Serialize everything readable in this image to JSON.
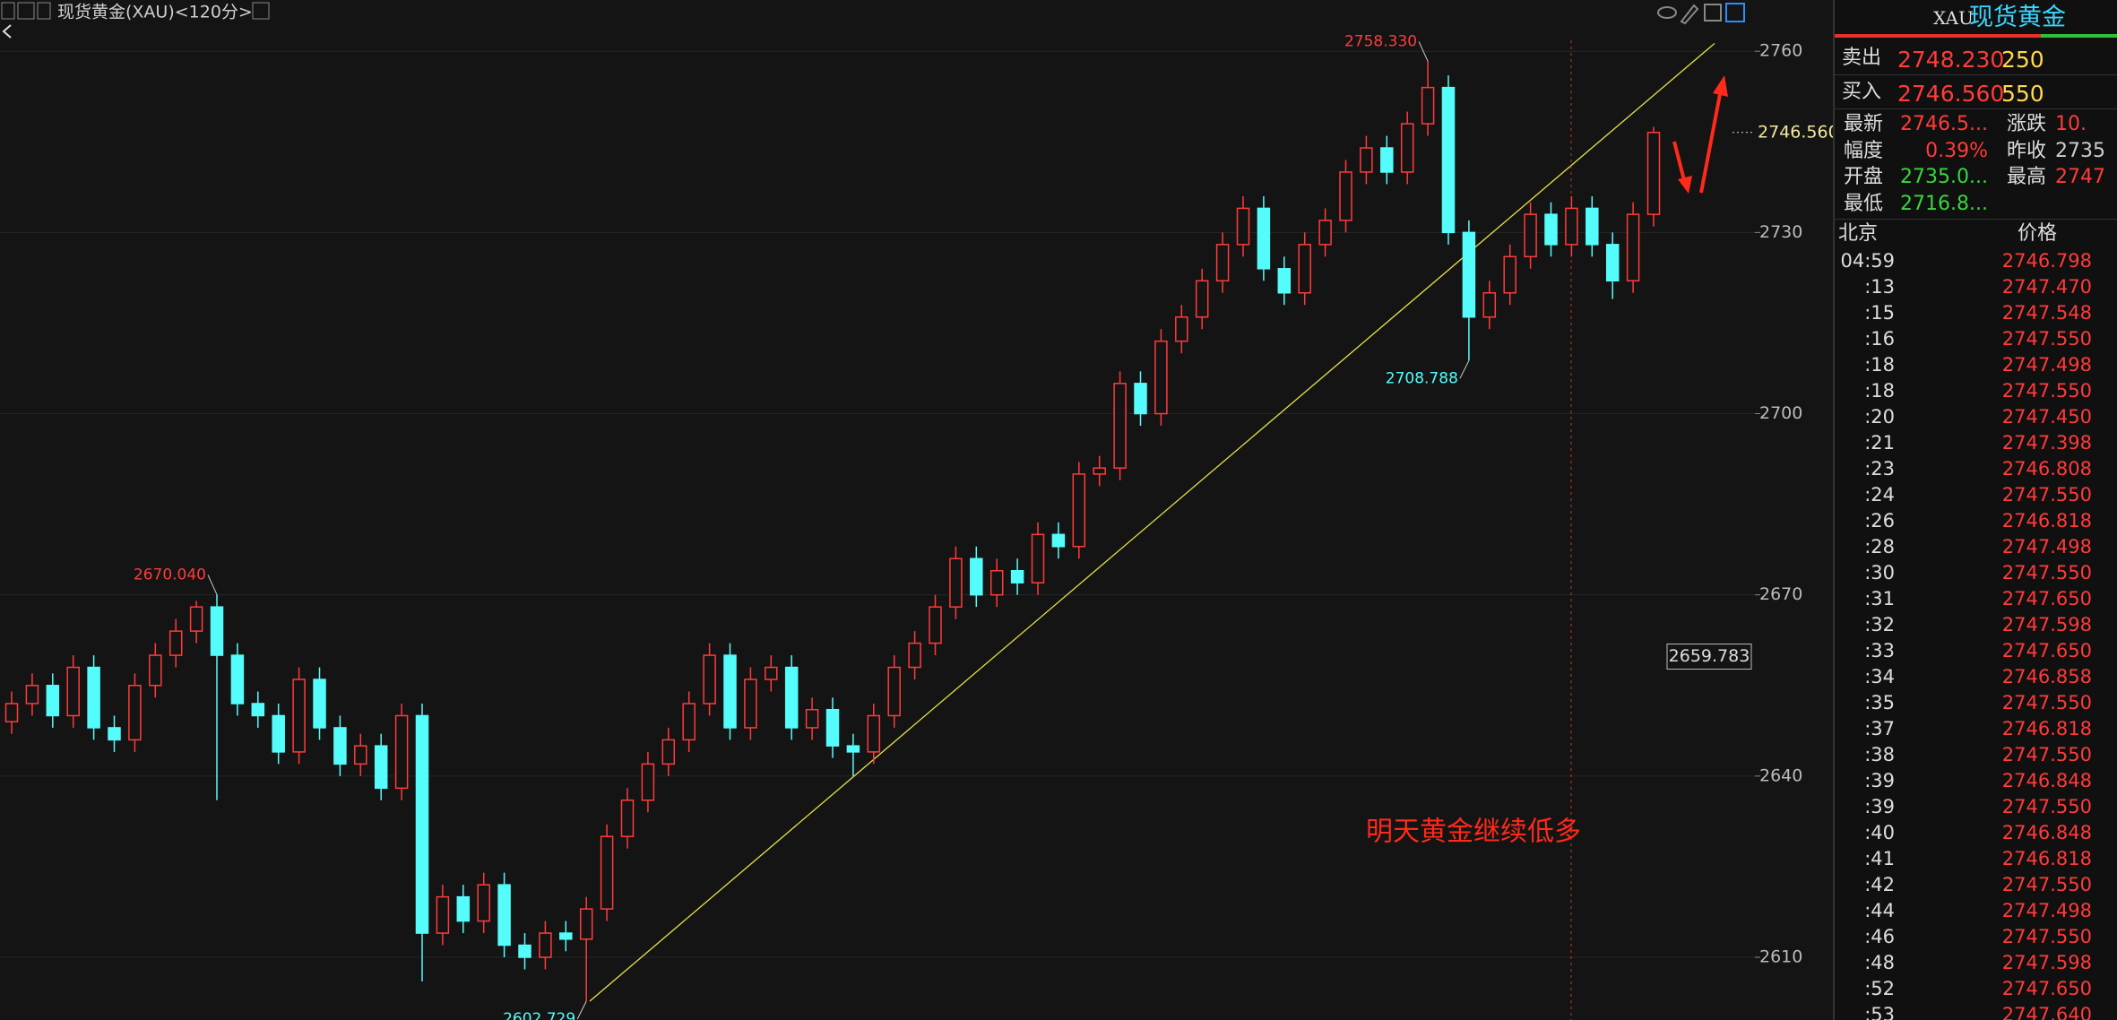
{
  "chart_data": {
    "type": "candlestick",
    "title": "现货黄金(XAU)<120分>",
    "categories": [
      null,
      null,
      null,
      null,
      null,
      null,
      null,
      null,
      null,
      null,
      null,
      null,
      null,
      null,
      null,
      null,
      null,
      null,
      null,
      null,
      null,
      null,
      null,
      null,
      null,
      null,
      null,
      null,
      null,
      null,
      null,
      null,
      null,
      null,
      null,
      null,
      null,
      null,
      null,
      null,
      null,
      null,
      null,
      null,
      null,
      null,
      null,
      null,
      null,
      null,
      null,
      null,
      null,
      null,
      null,
      null,
      null,
      null,
      null,
      null,
      null,
      null,
      null,
      null,
      null,
      null,
      null,
      null,
      null,
      null,
      null,
      null,
      null,
      null,
      null,
      null,
      null,
      null,
      null,
      null,
      null
    ],
    "open": [
      2649,
      2652,
      2655,
      2650,
      2658,
      2648,
      2646,
      2655,
      2660,
      2664,
      2668,
      2660,
      2652,
      2650,
      2644,
      2656,
      2648,
      2642,
      2645,
      2638,
      2650,
      2614,
      2620,
      2616,
      2622,
      2612,
      2610,
      2614,
      2613,
      2618,
      2630,
      2636,
      2642,
      2646,
      2652,
      2660,
      2648,
      2656,
      2658,
      2648,
      2651,
      2645,
      2644,
      2650,
      2658,
      2662,
      2668,
      2676,
      2670,
      2674,
      2672,
      2680,
      2678,
      2690,
      2691,
      2705,
      2700,
      2712,
      2716,
      2722,
      2728,
      2734,
      2724,
      2720,
      2728,
      2732,
      2740,
      2744,
      2740,
      2748,
      2754,
      2730,
      2716,
      2720,
      2726,
      2733,
      2728,
      2734,
      2728,
      2722,
      2733
    ],
    "high": [
      2654,
      2657,
      2657,
      2660,
      2660,
      2650,
      2657,
      2662,
      2666,
      2669,
      2670.04,
      2662,
      2654,
      2652,
      2658,
      2658,
      2650,
      2647,
      2647,
      2652,
      2652,
      2622,
      2622,
      2624,
      2624,
      2614,
      2616,
      2616,
      2620,
      2632,
      2638,
      2644,
      2648,
      2654,
      2662,
      2662,
      2658,
      2660,
      2660,
      2653,
      2653,
      2647,
      2652,
      2660,
      2664,
      2670,
      2678,
      2678,
      2676,
      2676,
      2682,
      2682,
      2692,
      2693,
      2707,
      2707,
      2714,
      2718,
      2724,
      2730,
      2736,
      2736,
      2726,
      2730,
      2734,
      2742,
      2746,
      2746,
      2750,
      2758.33,
      2756,
      2732,
      2722,
      2728,
      2735,
      2735,
      2736,
      2736,
      2730,
      2735,
      2747.5
    ],
    "low": [
      2647,
      2650,
      2648,
      2648,
      2646,
      2644,
      2644,
      2653,
      2658,
      2662,
      2636,
      2650,
      2648,
      2642,
      2642,
      2646,
      2640,
      2640,
      2636,
      2636,
      2606,
      2612,
      2614,
      2614,
      2610,
      2608,
      2608,
      2611,
      2602.729,
      2616,
      2628,
      2634,
      2640,
      2644,
      2650,
      2646,
      2646,
      2654,
      2646,
      2646,
      2643,
      2640,
      2642,
      2648,
      2656,
      2660,
      2666,
      2668,
      2668,
      2670,
      2670,
      2676,
      2676,
      2688,
      2689,
      2698,
      2698,
      2710,
      2714,
      2720,
      2726,
      2722,
      2718,
      2718,
      2726,
      2730,
      2738,
      2738,
      2738,
      2746,
      2728,
      2708.788,
      2714,
      2718,
      2724,
      2726,
      2726,
      2726,
      2719,
      2720,
      2731
    ],
    "close": [
      2652,
      2655,
      2650,
      2658,
      2648,
      2646,
      2655,
      2660,
      2664,
      2668,
      2660,
      2652,
      2650,
      2644,
      2656,
      2648,
      2642,
      2645,
      2638,
      2650,
      2614,
      2620,
      2616,
      2622,
      2612,
      2610,
      2614,
      2613,
      2618,
      2630,
      2636,
      2642,
      2646,
      2652,
      2660,
      2648,
      2656,
      2658,
      2648,
      2651,
      2645,
      2644,
      2650,
      2658,
      2662,
      2668,
      2676,
      2670,
      2674,
      2672,
      2680,
      2678,
      2690,
      2691,
      2705,
      2700,
      2712,
      2716,
      2722,
      2728,
      2734,
      2724,
      2720,
      2728,
      2732,
      2740,
      2744,
      2740,
      2748,
      2754,
      2730,
      2716,
      2720,
      2726,
      2733,
      2728,
      2734,
      2728,
      2722,
      2733,
      2746.56
    ],
    "up_color": "#ff3b3b",
    "down_color": "#54fcfc",
    "ylim": [
      2600,
      2765
    ],
    "yticks": [
      2610,
      2640,
      2670,
      2700,
      2730,
      2760
    ],
    "grid": true,
    "extreme_labels": [
      {
        "value": 2758.33,
        "label": "2758.330"
      },
      {
        "value": 2670.04,
        "label": "2670.040"
      },
      {
        "value": 2708.788,
        "label": "2708.788"
      },
      {
        "value": 2602.729,
        "label": "2602.729"
      }
    ],
    "last_price": {
      "value": 2746.56,
      "label": "2746.560"
    },
    "cursor_price": {
      "value": 2659.783,
      "label": "2659.783"
    },
    "trendline": [
      2602.729,
      2761.3
    ],
    "annotation": "明天黄金继续低多"
  },
  "panel": {
    "code": "XAU",
    "name": "现货黄金",
    "quotes": [
      [
        "卖出",
        "2748.230",
        "250"
      ],
      [
        "买入",
        "2746.560",
        "550"
      ]
    ],
    "stats": [
      [
        "最新",
        "2746.5...",
        "涨跌",
        "10."
      ],
      [
        "幅度",
        "0.39%",
        "昨收",
        "2735"
      ],
      [
        "开盘",
        "2735.0...",
        "最高",
        "2747"
      ],
      [
        "最低",
        "2716.8..."
      ]
    ],
    "ticks_header": [
      "北京",
      "价格"
    ],
    "ticks": [
      [
        "04:59",
        "2746.798"
      ],
      [
        ":13",
        "2747.470"
      ],
      [
        ":15",
        "2747.548"
      ],
      [
        ":16",
        "2747.550"
      ],
      [
        ":18",
        "2747.498"
      ],
      [
        ":18",
        "2747.550"
      ],
      [
        ":20",
        "2747.450"
      ],
      [
        ":21",
        "2747.398"
      ],
      [
        ":23",
        "2746.808"
      ],
      [
        ":24",
        "2747.550"
      ],
      [
        ":26",
        "2746.818"
      ],
      [
        ":28",
        "2747.498"
      ],
      [
        ":30",
        "2747.550"
      ],
      [
        ":31",
        "2747.650"
      ],
      [
        ":32",
        "2747.598"
      ],
      [
        ":33",
        "2747.650"
      ],
      [
        ":34",
        "2746.858"
      ],
      [
        ":35",
        "2747.550"
      ],
      [
        ":37",
        "2746.818"
      ],
      [
        ":38",
        "2747.550"
      ],
      [
        ":39",
        "2746.848"
      ],
      [
        ":39",
        "2747.550"
      ],
      [
        ":40",
        "2746.848"
      ],
      [
        ":41",
        "2746.818"
      ],
      [
        ":42",
        "2747.550"
      ],
      [
        ":44",
        "2747.498"
      ],
      [
        ":46",
        "2747.550"
      ],
      [
        ":48",
        "2747.598"
      ],
      [
        ":52",
        "2747.650"
      ],
      [
        ":53",
        "2747.640"
      ]
    ]
  }
}
